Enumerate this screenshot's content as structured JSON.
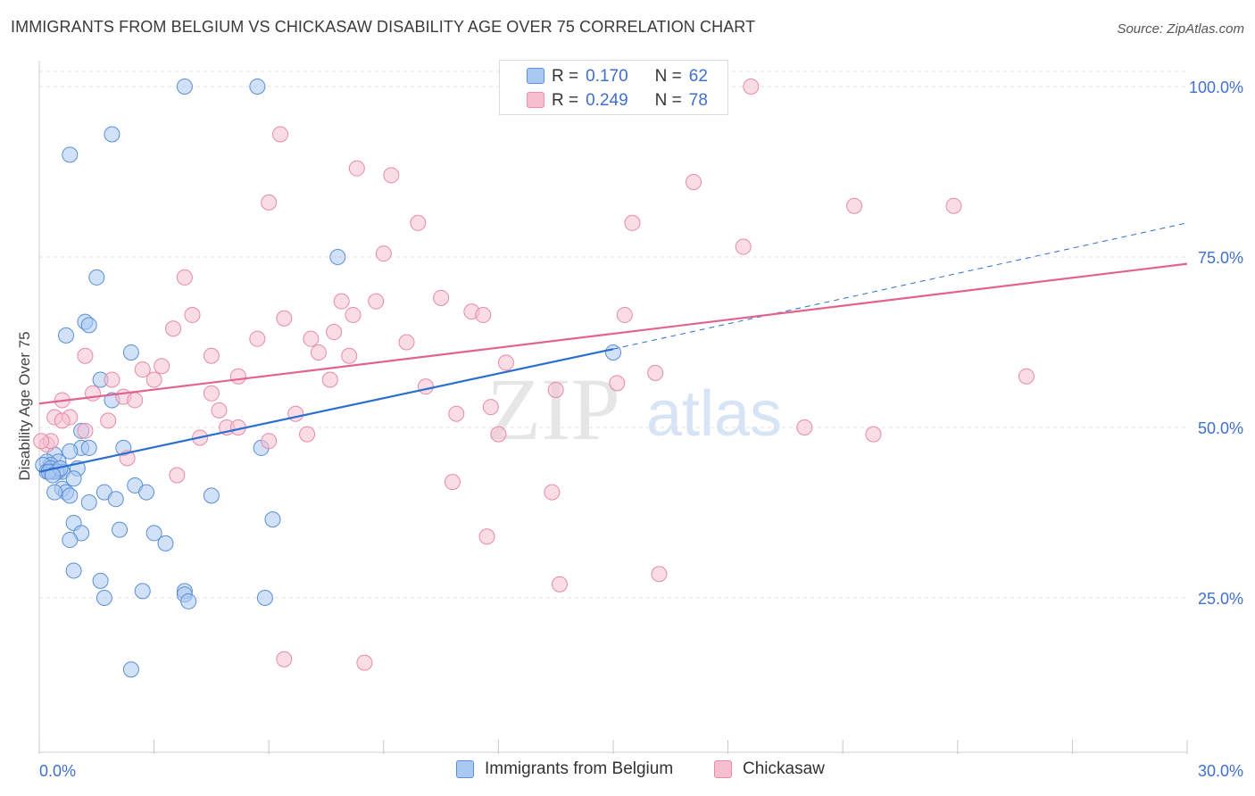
{
  "title": "IMMIGRANTS FROM BELGIUM VS CHICKASAW DISABILITY AGE OVER 75 CORRELATION CHART",
  "source": "Source: ZipAtlas.com",
  "watermark": {
    "zip": "ZIP",
    "atlas": "atlas"
  },
  "legend_top": {
    "rows": [
      {
        "r_label": "R =",
        "r_value": "0.170",
        "n_label": "N =",
        "n_value": "62"
      },
      {
        "r_label": "R =",
        "r_value": "0.249",
        "n_label": "N =",
        "n_value": "78"
      }
    ]
  },
  "legend_bottom": {
    "series1": "Immigrants from Belgium",
    "series2": "Chickasaw"
  },
  "colors": {
    "belgium_fill": "#a9c8f2",
    "belgium_stroke": "#5b8fd6",
    "belgium_line": "#2a6fd0",
    "chickasaw_fill": "#f6bfd0",
    "chickasaw_stroke": "#e88aa8",
    "chickasaw_line": "#e0648e",
    "axis_text": "#3f6fd1",
    "grid": "#e3e3e3"
  },
  "chart_data": {
    "type": "scatter",
    "title": "IMMIGRANTS FROM BELGIUM VS CHICKASAW DISABILITY AGE OVER 75 CORRELATION CHART",
    "xlabel": "",
    "ylabel": "Disability Age Over 75",
    "xlim": [
      0,
      30
    ],
    "ylim": [
      3,
      103
    ],
    "x_tick_labels": [
      "0.0%",
      "30.0%"
    ],
    "y_ticks": [
      25,
      50,
      75,
      100
    ],
    "y_tick_labels": [
      "25.0%",
      "50.0%",
      "75.0%",
      "100.0%"
    ],
    "grid": "horizontal dashed",
    "legend_position": "top-center",
    "series": [
      {
        "name": "Immigrants from Belgium",
        "points": [
          [
            3.8,
            100
          ],
          [
            5.7,
            100
          ],
          [
            1.9,
            93
          ],
          [
            0.8,
            90
          ],
          [
            7.8,
            75
          ],
          [
            1.5,
            72
          ],
          [
            1.2,
            65.5
          ],
          [
            1.3,
            65
          ],
          [
            0.7,
            63.5
          ],
          [
            2.4,
            61
          ],
          [
            15,
            61
          ],
          [
            1.6,
            57
          ],
          [
            1.9,
            54
          ],
          [
            1.1,
            49.5
          ],
          [
            2.2,
            47
          ],
          [
            1.1,
            47
          ],
          [
            1.3,
            47
          ],
          [
            5.8,
            47
          ],
          [
            0.8,
            46.5
          ],
          [
            0.4,
            46
          ],
          [
            0.2,
            45
          ],
          [
            0.5,
            45
          ],
          [
            0.3,
            44.5
          ],
          [
            0.1,
            44.5
          ],
          [
            0.2,
            43.5
          ],
          [
            0.5,
            43.5
          ],
          [
            0.3,
            43.5
          ],
          [
            0.6,
            43.5
          ],
          [
            1.0,
            44
          ],
          [
            0.9,
            42.5
          ],
          [
            2.5,
            41.5
          ],
          [
            0.6,
            41
          ],
          [
            0.7,
            40.5
          ],
          [
            1.7,
            40.5
          ],
          [
            0.4,
            40.5
          ],
          [
            0.8,
            40
          ],
          [
            2.8,
            40.5
          ],
          [
            4.5,
            40
          ],
          [
            1.3,
            39
          ],
          [
            2.0,
            39.5
          ],
          [
            0.9,
            36
          ],
          [
            6.1,
            36.5
          ],
          [
            2.1,
            35
          ],
          [
            1.1,
            34.5
          ],
          [
            3.0,
            34.5
          ],
          [
            0.8,
            33.5
          ],
          [
            3.3,
            33
          ],
          [
            0.9,
            29
          ],
          [
            1.6,
            27.5
          ],
          [
            2.7,
            26
          ],
          [
            3.8,
            26
          ],
          [
            1.7,
            25
          ],
          [
            3.8,
            25.5
          ],
          [
            3.9,
            24.5
          ],
          [
            5.9,
            25
          ],
          [
            2.4,
            14.5
          ],
          [
            0.3,
            44
          ],
          [
            0.35,
            43.5
          ],
          [
            0.45,
            43.5
          ],
          [
            0.25,
            43.5
          ],
          [
            0.55,
            44
          ],
          [
            0.35,
            43
          ]
        ]
      },
      {
        "name": "Chickasaw",
        "points": [
          [
            16.6,
            100
          ],
          [
            18.6,
            100
          ],
          [
            6.3,
            93
          ],
          [
            8.3,
            88
          ],
          [
            9.2,
            87
          ],
          [
            17.1,
            86
          ],
          [
            6.0,
            83
          ],
          [
            21.3,
            82.5
          ],
          [
            23.9,
            82.5
          ],
          [
            9.9,
            80
          ],
          [
            15.5,
            80
          ],
          [
            18.4,
            76.5
          ],
          [
            9.0,
            75.5
          ],
          [
            3.8,
            72
          ],
          [
            10.5,
            69
          ],
          [
            8.8,
            68.5
          ],
          [
            7.9,
            68.5
          ],
          [
            11.3,
            67
          ],
          [
            11.6,
            66.5
          ],
          [
            15.3,
            66.5
          ],
          [
            4.0,
            66.5
          ],
          [
            6.4,
            66
          ],
          [
            8.2,
            66.5
          ],
          [
            3.5,
            64.5
          ],
          [
            7.7,
            64
          ],
          [
            5.7,
            63
          ],
          [
            7.1,
            63
          ],
          [
            9.6,
            62.5
          ],
          [
            7.3,
            61
          ],
          [
            8.1,
            60.5
          ],
          [
            4.5,
            60.5
          ],
          [
            1.2,
            60.5
          ],
          [
            12.2,
            59.5
          ],
          [
            3.2,
            59
          ],
          [
            2.7,
            58.5
          ],
          [
            16.1,
            58
          ],
          [
            25.8,
            57.5
          ],
          [
            5.2,
            57.5
          ],
          [
            7.6,
            57
          ],
          [
            3.0,
            57
          ],
          [
            1.9,
            57
          ],
          [
            15.1,
            56.5
          ],
          [
            10.1,
            56
          ],
          [
            13.5,
            55.5
          ],
          [
            4.5,
            55
          ],
          [
            1.4,
            55
          ],
          [
            2.2,
            54.5
          ],
          [
            0.6,
            54
          ],
          [
            2.5,
            54
          ],
          [
            11.8,
            53
          ],
          [
            4.7,
            52.5
          ],
          [
            6.7,
            52
          ],
          [
            10.9,
            52
          ],
          [
            0.8,
            51.5
          ],
          [
            0.4,
            51.5
          ],
          [
            1.8,
            51
          ],
          [
            0.6,
            51
          ],
          [
            4.9,
            50
          ],
          [
            5.2,
            50
          ],
          [
            20.0,
            50
          ],
          [
            1.2,
            49.5
          ],
          [
            7.0,
            49
          ],
          [
            12.0,
            49
          ],
          [
            4.2,
            48.5
          ],
          [
            21.8,
            49
          ],
          [
            6.0,
            48
          ],
          [
            0.2,
            47.5
          ],
          [
            0.3,
            48
          ],
          [
            2.3,
            45.5
          ],
          [
            3.6,
            43
          ],
          [
            10.8,
            42
          ],
          [
            13.4,
            40.5
          ],
          [
            11.7,
            34
          ],
          [
            16.2,
            28.5
          ],
          [
            13.6,
            27
          ],
          [
            6.4,
            16
          ],
          [
            8.5,
            15.5
          ],
          [
            0.05,
            48
          ]
        ]
      }
    ],
    "trend_lines": [
      {
        "series": "Immigrants from Belgium",
        "x": [
          0,
          15
        ],
        "y": [
          43.5,
          61.5
        ],
        "dashed_extension_to": [
          30,
          80
        ]
      },
      {
        "series": "Chickasaw",
        "x": [
          0,
          30
        ],
        "y": [
          53.5,
          74
        ]
      }
    ]
  }
}
